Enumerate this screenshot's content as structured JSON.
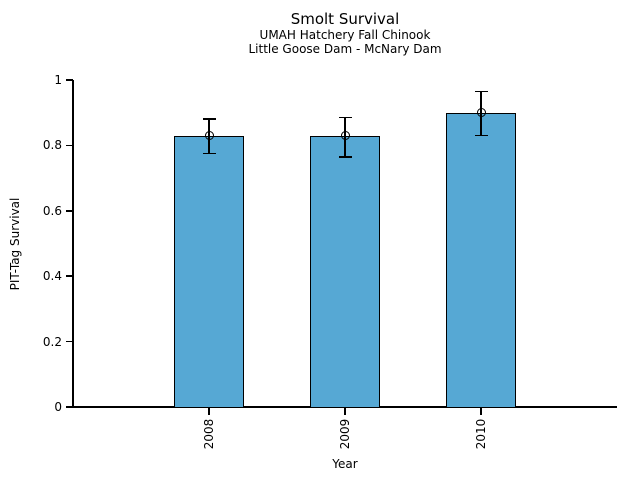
{
  "chart_data": {
    "type": "bar",
    "title": "Smolt Survival",
    "subtitle": [
      "UMAH Hatchery Fall Chinook",
      "Little Goose Dam - McNary Dam"
    ],
    "categories": [
      "2008",
      "2009",
      "2010"
    ],
    "values": [
      0.83,
      0.83,
      0.9
    ],
    "error_low": [
      0.775,
      0.765,
      0.83
    ],
    "error_high": [
      0.88,
      0.885,
      0.965
    ],
    "xlabel": "Year",
    "ylabel": "PIT-Tag Survival",
    "ylim": [
      0,
      1
    ],
    "yticks": [
      0,
      0.2,
      0.4,
      0.6,
      0.8,
      1
    ],
    "ytick_labels": [
      "0",
      "0.2",
      "0.4",
      "0.6",
      "0.8",
      "1"
    ],
    "grid": false,
    "legend_position": "none",
    "bar_color": "#56A8D4",
    "bar_edge_color": "#000000",
    "error_bar_color": "#000000",
    "marker": "open-circle",
    "x_tick_label_rotation": 90
  }
}
